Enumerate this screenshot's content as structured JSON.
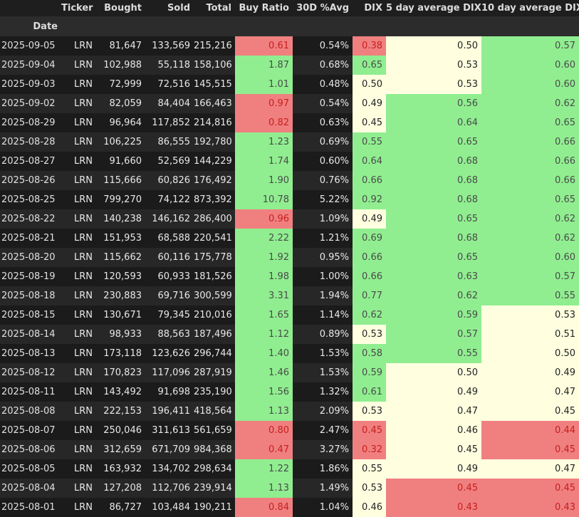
{
  "columns": {
    "index_name": "Date",
    "ticker": "Ticker",
    "bought": "Bought",
    "sold": "Sold",
    "total": "Total",
    "buy_ratio": "Buy Ratio",
    "avg30": "30D %Avg",
    "dix": "DIX",
    "dix5": "5 day average DIX",
    "dix10": "10 day average DIX"
  },
  "colors": {
    "green": "#90ee90",
    "red": "#f08080",
    "yellow": "#ffffe0",
    "background": "#1e1e1e"
  },
  "rows": [
    {
      "date": "2025-09-05",
      "ticker": "LRN",
      "bought": "81,647",
      "sold": "133,569",
      "total": "215,216",
      "buy_ratio": "0.61",
      "buy_ratio_color": "r",
      "avg30": "0.54%",
      "dix": "0.38",
      "dix_color": "r",
      "dix5": "0.50",
      "dix5_color": "y",
      "dix10": "0.57",
      "dix10_color": "g"
    },
    {
      "date": "2025-09-04",
      "ticker": "LRN",
      "bought": "102,988",
      "sold": "55,118",
      "total": "158,106",
      "buy_ratio": "1.87",
      "buy_ratio_color": "g",
      "avg30": "0.68%",
      "dix": "0.65",
      "dix_color": "g",
      "dix5": "0.53",
      "dix5_color": "y",
      "dix10": "0.60",
      "dix10_color": "g"
    },
    {
      "date": "2025-09-03",
      "ticker": "LRN",
      "bought": "72,999",
      "sold": "72,516",
      "total": "145,515",
      "buy_ratio": "1.01",
      "buy_ratio_color": "g",
      "avg30": "0.48%",
      "dix": "0.50",
      "dix_color": "y",
      "dix5": "0.53",
      "dix5_color": "y",
      "dix10": "0.60",
      "dix10_color": "g"
    },
    {
      "date": "2025-09-02",
      "ticker": "LRN",
      "bought": "82,059",
      "sold": "84,404",
      "total": "166,463",
      "buy_ratio": "0.97",
      "buy_ratio_color": "r",
      "avg30": "0.54%",
      "dix": "0.49",
      "dix_color": "y",
      "dix5": "0.56",
      "dix5_color": "g",
      "dix10": "0.62",
      "dix10_color": "g"
    },
    {
      "date": "2025-08-29",
      "ticker": "LRN",
      "bought": "96,964",
      "sold": "117,852",
      "total": "214,816",
      "buy_ratio": "0.82",
      "buy_ratio_color": "r",
      "avg30": "0.63%",
      "dix": "0.45",
      "dix_color": "y",
      "dix5": "0.64",
      "dix5_color": "g",
      "dix10": "0.65",
      "dix10_color": "g"
    },
    {
      "date": "2025-08-28",
      "ticker": "LRN",
      "bought": "106,225",
      "sold": "86,555",
      "total": "192,780",
      "buy_ratio": "1.23",
      "buy_ratio_color": "g",
      "avg30": "0.69%",
      "dix": "0.55",
      "dix_color": "g",
      "dix5": "0.65",
      "dix5_color": "g",
      "dix10": "0.66",
      "dix10_color": "g"
    },
    {
      "date": "2025-08-27",
      "ticker": "LRN",
      "bought": "91,660",
      "sold": "52,569",
      "total": "144,229",
      "buy_ratio": "1.74",
      "buy_ratio_color": "g",
      "avg30": "0.60%",
      "dix": "0.64",
      "dix_color": "g",
      "dix5": "0.68",
      "dix5_color": "g",
      "dix10": "0.66",
      "dix10_color": "g"
    },
    {
      "date": "2025-08-26",
      "ticker": "LRN",
      "bought": "115,666",
      "sold": "60,826",
      "total": "176,492",
      "buy_ratio": "1.90",
      "buy_ratio_color": "g",
      "avg30": "0.76%",
      "dix": "0.66",
      "dix_color": "g",
      "dix5": "0.68",
      "dix5_color": "g",
      "dix10": "0.66",
      "dix10_color": "g"
    },
    {
      "date": "2025-08-25",
      "ticker": "LRN",
      "bought": "799,270",
      "sold": "74,122",
      "total": "873,392",
      "buy_ratio": "10.78",
      "buy_ratio_color": "g",
      "avg30": "5.22%",
      "dix": "0.92",
      "dix_color": "g",
      "dix5": "0.68",
      "dix5_color": "g",
      "dix10": "0.65",
      "dix10_color": "g"
    },
    {
      "date": "2025-08-22",
      "ticker": "LRN",
      "bought": "140,238",
      "sold": "146,162",
      "total": "286,400",
      "buy_ratio": "0.96",
      "buy_ratio_color": "r",
      "avg30": "1.09%",
      "dix": "0.49",
      "dix_color": "y",
      "dix5": "0.65",
      "dix5_color": "g",
      "dix10": "0.62",
      "dix10_color": "g"
    },
    {
      "date": "2025-08-21",
      "ticker": "LRN",
      "bought": "151,953",
      "sold": "68,588",
      "total": "220,541",
      "buy_ratio": "2.22",
      "buy_ratio_color": "g",
      "avg30": "1.21%",
      "dix": "0.69",
      "dix_color": "g",
      "dix5": "0.68",
      "dix5_color": "g",
      "dix10": "0.62",
      "dix10_color": "g"
    },
    {
      "date": "2025-08-20",
      "ticker": "LRN",
      "bought": "115,662",
      "sold": "60,116",
      "total": "175,778",
      "buy_ratio": "1.92",
      "buy_ratio_color": "g",
      "avg30": "0.95%",
      "dix": "0.66",
      "dix_color": "g",
      "dix5": "0.65",
      "dix5_color": "g",
      "dix10": "0.60",
      "dix10_color": "g"
    },
    {
      "date": "2025-08-19",
      "ticker": "LRN",
      "bought": "120,593",
      "sold": "60,933",
      "total": "181,526",
      "buy_ratio": "1.98",
      "buy_ratio_color": "g",
      "avg30": "1.00%",
      "dix": "0.66",
      "dix_color": "g",
      "dix5": "0.63",
      "dix5_color": "g",
      "dix10": "0.57",
      "dix10_color": "g"
    },
    {
      "date": "2025-08-18",
      "ticker": "LRN",
      "bought": "230,883",
      "sold": "69,716",
      "total": "300,599",
      "buy_ratio": "3.31",
      "buy_ratio_color": "g",
      "avg30": "1.94%",
      "dix": "0.77",
      "dix_color": "g",
      "dix5": "0.62",
      "dix5_color": "g",
      "dix10": "0.55",
      "dix10_color": "g"
    },
    {
      "date": "2025-08-15",
      "ticker": "LRN",
      "bought": "130,671",
      "sold": "79,345",
      "total": "210,016",
      "buy_ratio": "1.65",
      "buy_ratio_color": "g",
      "avg30": "1.14%",
      "dix": "0.62",
      "dix_color": "g",
      "dix5": "0.59",
      "dix5_color": "g",
      "dix10": "0.53",
      "dix10_color": "y"
    },
    {
      "date": "2025-08-14",
      "ticker": "LRN",
      "bought": "98,933",
      "sold": "88,563",
      "total": "187,496",
      "buy_ratio": "1.12",
      "buy_ratio_color": "g",
      "avg30": "0.89%",
      "dix": "0.53",
      "dix_color": "y",
      "dix5": "0.57",
      "dix5_color": "g",
      "dix10": "0.51",
      "dix10_color": "y"
    },
    {
      "date": "2025-08-13",
      "ticker": "LRN",
      "bought": "173,118",
      "sold": "123,626",
      "total": "296,744",
      "buy_ratio": "1.40",
      "buy_ratio_color": "g",
      "avg30": "1.53%",
      "dix": "0.58",
      "dix_color": "g",
      "dix5": "0.55",
      "dix5_color": "g",
      "dix10": "0.50",
      "dix10_color": "y"
    },
    {
      "date": "2025-08-12",
      "ticker": "LRN",
      "bought": "170,823",
      "sold": "117,096",
      "total": "287,919",
      "buy_ratio": "1.46",
      "buy_ratio_color": "g",
      "avg30": "1.53%",
      "dix": "0.59",
      "dix_color": "g",
      "dix5": "0.50",
      "dix5_color": "y",
      "dix10": "0.49",
      "dix10_color": "y"
    },
    {
      "date": "2025-08-11",
      "ticker": "LRN",
      "bought": "143,492",
      "sold": "91,698",
      "total": "235,190",
      "buy_ratio": "1.56",
      "buy_ratio_color": "g",
      "avg30": "1.32%",
      "dix": "0.61",
      "dix_color": "g",
      "dix5": "0.49",
      "dix5_color": "y",
      "dix10": "0.47",
      "dix10_color": "y"
    },
    {
      "date": "2025-08-08",
      "ticker": "LRN",
      "bought": "222,153",
      "sold": "196,411",
      "total": "418,564",
      "buy_ratio": "1.13",
      "buy_ratio_color": "g",
      "avg30": "2.09%",
      "dix": "0.53",
      "dix_color": "y",
      "dix5": "0.47",
      "dix5_color": "y",
      "dix10": "0.45",
      "dix10_color": "y"
    },
    {
      "date": "2025-08-07",
      "ticker": "LRN",
      "bought": "250,046",
      "sold": "311,613",
      "total": "561,659",
      "buy_ratio": "0.80",
      "buy_ratio_color": "r",
      "avg30": "2.47%",
      "dix": "0.45",
      "dix_color": "r",
      "dix5": "0.46",
      "dix5_color": "y",
      "dix10": "0.44",
      "dix10_color": "r"
    },
    {
      "date": "2025-08-06",
      "ticker": "LRN",
      "bought": "312,659",
      "sold": "671,709",
      "total": "984,368",
      "buy_ratio": "0.47",
      "buy_ratio_color": "r",
      "avg30": "3.27%",
      "dix": "0.32",
      "dix_color": "r",
      "dix5": "0.45",
      "dix5_color": "y",
      "dix10": "0.45",
      "dix10_color": "r"
    },
    {
      "date": "2025-08-05",
      "ticker": "LRN",
      "bought": "163,932",
      "sold": "134,702",
      "total": "298,634",
      "buy_ratio": "1.22",
      "buy_ratio_color": "g",
      "avg30": "1.86%",
      "dix": "0.55",
      "dix_color": "y",
      "dix5": "0.49",
      "dix5_color": "y",
      "dix10": "0.47",
      "dix10_color": "y"
    },
    {
      "date": "2025-08-04",
      "ticker": "LRN",
      "bought": "127,208",
      "sold": "112,706",
      "total": "239,914",
      "buy_ratio": "1.13",
      "buy_ratio_color": "g",
      "avg30": "1.49%",
      "dix": "0.53",
      "dix_color": "y",
      "dix5": "0.45",
      "dix5_color": "r",
      "dix10": "0.45",
      "dix10_color": "r"
    },
    {
      "date": "2025-08-01",
      "ticker": "LRN",
      "bought": "86,727",
      "sold": "103,484",
      "total": "190,211",
      "buy_ratio": "0.84",
      "buy_ratio_color": "r",
      "avg30": "1.04%",
      "dix": "0.46",
      "dix_color": "y",
      "dix5": "0.43",
      "dix5_color": "r",
      "dix10": "0.43",
      "dix10_color": "r"
    }
  ]
}
